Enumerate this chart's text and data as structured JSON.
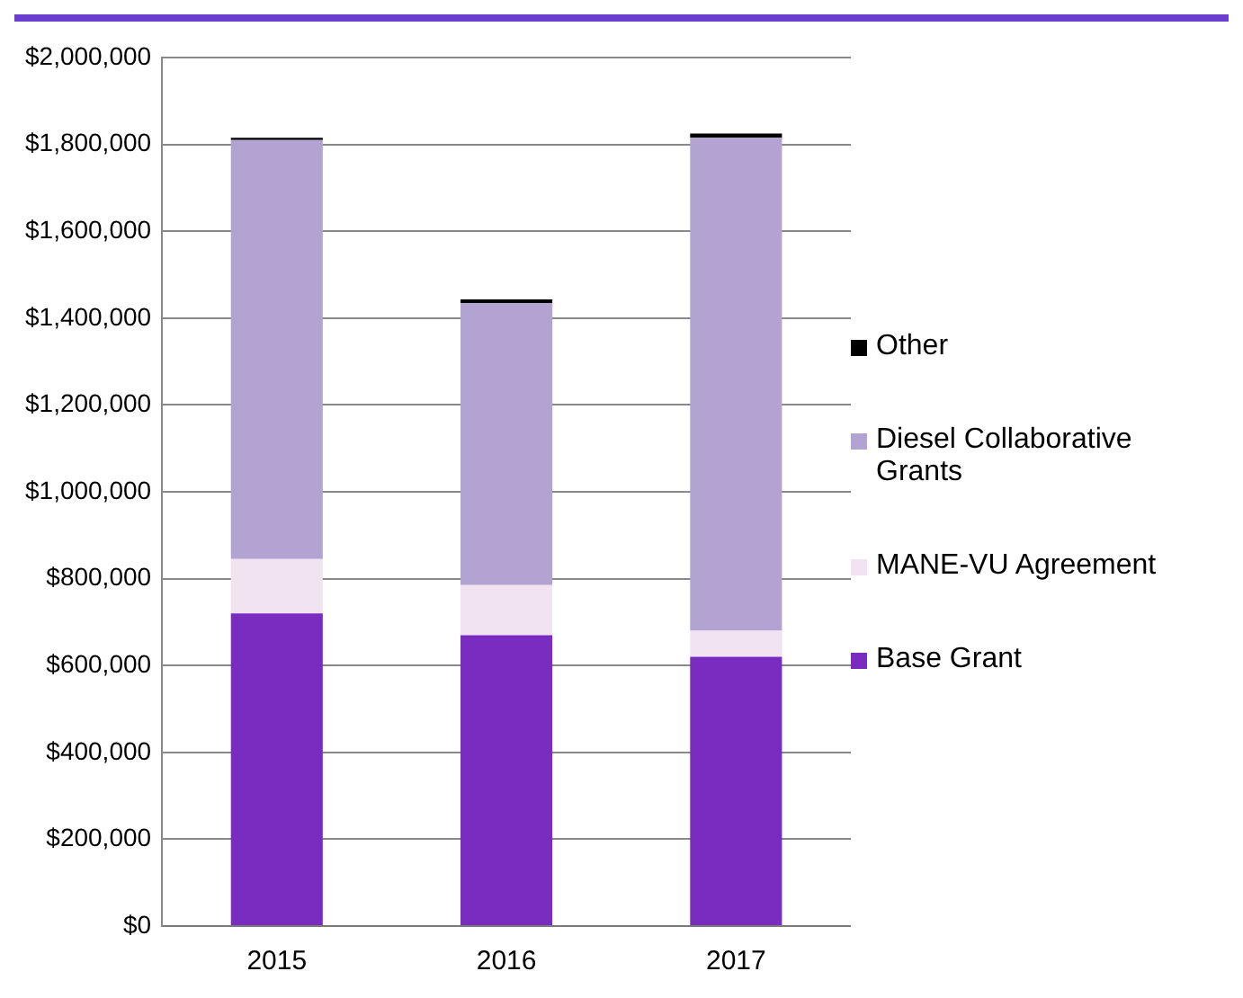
{
  "chart_data": {
    "type": "bar",
    "stacked": true,
    "categories": [
      "2015",
      "2016",
      "2017"
    ],
    "series": [
      {
        "name": "Base Grant",
        "color": "#7a2cc0",
        "values": [
          720000,
          670000,
          620000
        ]
      },
      {
        "name": "MANE-VU Agreement",
        "color": "#f1e3f1",
        "values": [
          125000,
          115000,
          60000
        ]
      },
      {
        "name": "Diesel Collaborative Grants",
        "color": "#b3a3d3",
        "values": [
          965000,
          650000,
          1135000
        ]
      },
      {
        "name": "Other",
        "color": "#000000",
        "values": [
          5000,
          8000,
          10000
        ]
      }
    ],
    "ylim": [
      0,
      2000000
    ],
    "yticks": [
      {
        "value": 0,
        "label": "$0"
      },
      {
        "value": 200000,
        "label": "$200,000"
      },
      {
        "value": 400000,
        "label": "$400,000"
      },
      {
        "value": 600000,
        "label": "$600,000"
      },
      {
        "value": 800000,
        "label": "$800,000"
      },
      {
        "value": 1000000,
        "label": "$1,000,000"
      },
      {
        "value": 1200000,
        "label": "$1,200,000"
      },
      {
        "value": 1400000,
        "label": "$1,400,000"
      },
      {
        "value": 1600000,
        "label": "$1,600,000"
      },
      {
        "value": 1800000,
        "label": "$1,800,000"
      },
      {
        "value": 2000000,
        "label": "$2,000,000"
      }
    ],
    "grid": "y",
    "legend": "right"
  }
}
